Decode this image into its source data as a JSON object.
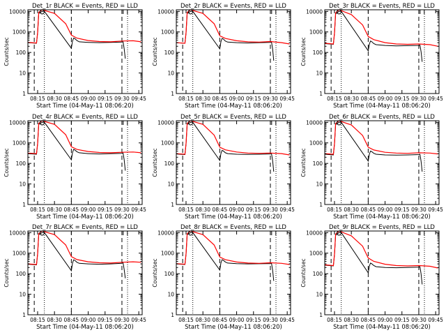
{
  "colors": {
    "events": "#000000",
    "lld": "#ff0000",
    "axis": "#000000",
    "background": "#ffffff"
  },
  "common": {
    "ylabel": "Counts/sec",
    "xlabel": "Start Time (04-May-11 08:06:20)",
    "yticks": [
      "1",
      "10",
      "100",
      "1000",
      "10000"
    ],
    "xticks": [
      "08:15",
      "08:30",
      "08:45",
      "09:00",
      "09:15",
      "09:30",
      "09:45"
    ]
  },
  "chart_data": [
    {
      "type": "line",
      "title": "Det_1r BLACK = Events, RED = LLD",
      "xlabel": "Start Time (04-May-11 08:06:20)",
      "ylabel": "Counts/sec",
      "y_scale": "log",
      "ylim": [
        1,
        12000
      ],
      "xlim": [
        "08:06:20",
        "09:48"
      ],
      "dashed_lines": [
        "08:12",
        "08:45",
        "09:30"
      ],
      "dotted_lines": [
        "08:21",
        "09:35"
      ],
      "series": [
        {
          "name": "Events",
          "x": [
            "08:06",
            "08:14",
            "08:15",
            "08:16",
            "08:19",
            "08:21",
            "08:45",
            "08:46",
            "08:47",
            "08:48",
            "08:50",
            "08:52",
            "09:00",
            "09:10",
            "09:20",
            "09:30",
            "09:31",
            "09:32",
            "09:33"
          ],
          "y": [
            300,
            280,
            900,
            8000,
            10000,
            10000,
            160,
            350,
            500,
            480,
            380,
            330,
            310,
            300,
            310,
            320,
            330,
            150,
            50
          ]
        },
        {
          "name": "LLD",
          "x": [
            "08:06",
            "08:14",
            "08:15",
            "08:16",
            "08:19",
            "08:30",
            "08:40",
            "08:45",
            "08:50",
            "09:00",
            "09:10",
            "09:20",
            "09:30",
            "09:40",
            "09:47"
          ],
          "y": [
            310,
            290,
            950,
            9000,
            12000,
            8000,
            2500,
            700,
            500,
            380,
            340,
            330,
            360,
            370,
            330
          ]
        }
      ]
    },
    {
      "type": "line",
      "title": "Det_2r BLACK = Events, RED = LLD",
      "xlabel": "Start Time (04-May-11 08:06:20)",
      "ylabel": "Counts/sec",
      "y_scale": "log",
      "ylim": [
        1,
        12000
      ],
      "xlim": [
        "08:06:20",
        "09:48"
      ],
      "dashed_lines": [
        "08:12",
        "08:45",
        "09:30"
      ],
      "dotted_lines": [
        "08:21",
        "09:35"
      ],
      "series": [
        {
          "name": "Events",
          "x": [
            "08:06",
            "08:14",
            "08:15",
            "08:16",
            "08:19",
            "08:21",
            "08:45",
            "08:46",
            "08:47",
            "08:48",
            "08:50",
            "08:52",
            "09:00",
            "09:10",
            "09:20",
            "09:30",
            "09:31",
            "09:32",
            "09:33"
          ],
          "y": [
            300,
            280,
            900,
            8000,
            10000,
            10000,
            150,
            330,
            480,
            460,
            360,
            320,
            300,
            290,
            300,
            310,
            320,
            150,
            40
          ]
        },
        {
          "name": "LLD",
          "x": [
            "08:06",
            "08:14",
            "08:15",
            "08:16",
            "08:19",
            "08:30",
            "08:40",
            "08:45",
            "08:50",
            "09:00",
            "09:10",
            "09:20",
            "09:30",
            "09:40",
            "09:47"
          ],
          "y": [
            300,
            280,
            950,
            9000,
            12000,
            8000,
            2500,
            650,
            480,
            370,
            330,
            320,
            340,
            300,
            260
          ]
        }
      ]
    },
    {
      "type": "line",
      "title": "Det_3r BLACK = Events, RED = LLD",
      "xlabel": "Start Time (04-May-11 08:06:20)",
      "ylabel": "Counts/sec",
      "y_scale": "log",
      "ylim": [
        1,
        12000
      ],
      "xlim": [
        "08:06:20",
        "09:48"
      ],
      "dashed_lines": [
        "08:12",
        "08:45",
        "09:30"
      ],
      "dotted_lines": [
        "08:21",
        "09:35"
      ],
      "series": [
        {
          "name": "Events",
          "x": [
            "08:06",
            "08:14",
            "08:15",
            "08:16",
            "08:19",
            "08:21",
            "08:45",
            "08:46",
            "08:47",
            "08:48",
            "08:50",
            "08:52",
            "09:00",
            "09:10",
            "09:20",
            "09:30",
            "09:31",
            "09:32",
            "09:33"
          ],
          "y": [
            270,
            250,
            850,
            7500,
            10000,
            10000,
            120,
            250,
            360,
            340,
            270,
            240,
            220,
            210,
            215,
            220,
            230,
            110,
            35
          ]
        },
        {
          "name": "LLD",
          "x": [
            "08:06",
            "08:14",
            "08:15",
            "08:16",
            "08:19",
            "08:30",
            "08:40",
            "08:45",
            "08:50",
            "09:00",
            "09:10",
            "09:20",
            "09:30",
            "09:40",
            "09:47"
          ],
          "y": [
            280,
            260,
            900,
            8500,
            12000,
            7000,
            2200,
            600,
            420,
            300,
            260,
            250,
            260,
            240,
            200
          ]
        }
      ]
    },
    {
      "type": "line",
      "title": "Det_4r BLACK = Events, RED = LLD",
      "xlabel": "Start Time (04-May-11 08:06:20)",
      "ylabel": "Counts/sec",
      "y_scale": "log",
      "ylim": [
        1,
        12000
      ],
      "xlim": [
        "08:06:20",
        "09:48"
      ],
      "dashed_lines": [
        "08:12",
        "08:45",
        "09:30"
      ],
      "dotted_lines": [
        "08:21",
        "09:35"
      ],
      "series": [
        {
          "name": "Events",
          "x": [
            "08:06",
            "08:14",
            "08:15",
            "08:16",
            "08:19",
            "08:21",
            "08:45",
            "08:46",
            "08:47",
            "08:48",
            "08:50",
            "08:52",
            "09:00",
            "09:10",
            "09:20",
            "09:30",
            "09:31",
            "09:32",
            "09:33"
          ],
          "y": [
            300,
            280,
            900,
            8000,
            10000,
            10000,
            150,
            330,
            480,
            460,
            370,
            330,
            300,
            290,
            300,
            310,
            320,
            150,
            45
          ]
        },
        {
          "name": "LLD",
          "x": [
            "08:06",
            "08:14",
            "08:15",
            "08:16",
            "08:19",
            "08:30",
            "08:40",
            "08:45",
            "08:50",
            "09:00",
            "09:10",
            "09:20",
            "09:30",
            "09:40",
            "09:47"
          ],
          "y": [
            320,
            300,
            950,
            9000,
            12000,
            8000,
            2500,
            650,
            480,
            380,
            340,
            330,
            350,
            360,
            330
          ]
        }
      ]
    },
    {
      "type": "line",
      "title": "Det_5r BLACK = Events, RED = LLD",
      "xlabel": "Start Time (04-May-11 08:06:20)",
      "ylabel": "Counts/sec",
      "y_scale": "log",
      "ylim": [
        1,
        12000
      ],
      "xlim": [
        "08:06:20",
        "09:48"
      ],
      "dashed_lines": [
        "08:12",
        "08:45",
        "09:30"
      ],
      "dotted_lines": [
        "08:21",
        "09:35"
      ],
      "series": [
        {
          "name": "Events",
          "x": [
            "08:06",
            "08:14",
            "08:15",
            "08:16",
            "08:19",
            "08:21",
            "08:45",
            "08:46",
            "08:47",
            "08:48",
            "08:50",
            "08:52",
            "09:00",
            "09:10",
            "09:20",
            "09:30",
            "09:31",
            "09:32",
            "09:33"
          ],
          "y": [
            290,
            270,
            900,
            8000,
            10000,
            10000,
            140,
            300,
            430,
            410,
            330,
            300,
            280,
            275,
            280,
            290,
            300,
            140,
            40
          ]
        },
        {
          "name": "LLD",
          "x": [
            "08:06",
            "08:14",
            "08:15",
            "08:16",
            "08:19",
            "08:30",
            "08:40",
            "08:45",
            "08:50",
            "09:00",
            "09:10",
            "09:20",
            "09:30",
            "09:40",
            "09:47"
          ],
          "y": [
            300,
            280,
            950,
            9000,
            12000,
            8000,
            2400,
            620,
            460,
            360,
            320,
            310,
            320,
            300,
            260
          ]
        }
      ]
    },
    {
      "type": "line",
      "title": "Det_6r BLACK = Events, RED = LLD",
      "xlabel": "Start Time (04-May-11 08:06:20)",
      "ylabel": "Counts/sec",
      "y_scale": "log",
      "ylim": [
        1,
        12000
      ],
      "xlim": [
        "08:06:20",
        "09:48"
      ],
      "dashed_lines": [
        "08:12",
        "08:45",
        "09:30"
      ],
      "dotted_lines": [
        "08:21",
        "09:35"
      ],
      "series": [
        {
          "name": "Events",
          "x": [
            "08:06",
            "08:14",
            "08:15",
            "08:16",
            "08:19",
            "08:21",
            "08:45",
            "08:46",
            "08:47",
            "08:48",
            "08:50",
            "08:52",
            "09:00",
            "09:10",
            "09:20",
            "09:30",
            "09:31",
            "09:32",
            "09:33"
          ],
          "y": [
            280,
            260,
            880,
            7800,
            10000,
            10000,
            130,
            280,
            400,
            380,
            310,
            280,
            260,
            255,
            260,
            270,
            280,
            130,
            40
          ]
        },
        {
          "name": "LLD",
          "x": [
            "08:06",
            "08:14",
            "08:15",
            "08:16",
            "08:19",
            "08:30",
            "08:40",
            "08:45",
            "08:50",
            "09:00",
            "09:10",
            "09:20",
            "09:30",
            "09:40",
            "09:47"
          ],
          "y": [
            300,
            280,
            930,
            8800,
            12000,
            7500,
            2300,
            620,
            450,
            350,
            320,
            310,
            330,
            320,
            290
          ]
        }
      ]
    },
    {
      "type": "line",
      "title": "Det_7r BLACK = Events, RED = LLD",
      "xlabel": "Start Time (04-May-11 08:06:20)",
      "ylabel": "Counts/sec",
      "y_scale": "log",
      "ylim": [
        1,
        12000
      ],
      "xlim": [
        "08:06:20",
        "09:48"
      ],
      "dashed_lines": [
        "08:12",
        "08:45",
        "09:30"
      ],
      "dotted_lines": [
        "08:21",
        "09:35"
      ],
      "series": [
        {
          "name": "Events",
          "x": [
            "08:06",
            "08:14",
            "08:15",
            "08:16",
            "08:19",
            "08:21",
            "08:45",
            "08:46",
            "08:47",
            "08:48",
            "08:50",
            "08:52",
            "09:00",
            "09:10",
            "09:20",
            "09:30",
            "09:31",
            "09:32",
            "09:33"
          ],
          "y": [
            290,
            270,
            900,
            8000,
            10000,
            10000,
            140,
            320,
            470,
            450,
            360,
            320,
            300,
            290,
            300,
            320,
            340,
            160,
            60
          ]
        },
        {
          "name": "LLD",
          "x": [
            "08:06",
            "08:14",
            "08:15",
            "08:16",
            "08:19",
            "08:30",
            "08:40",
            "08:45",
            "08:50",
            "09:00",
            "09:10",
            "09:20",
            "09:30",
            "09:40",
            "09:47"
          ],
          "y": [
            300,
            280,
            950,
            9000,
            12000,
            8000,
            2500,
            680,
            490,
            380,
            340,
            330,
            360,
            380,
            360
          ]
        }
      ]
    },
    {
      "type": "line",
      "title": "Det_8r BLACK = Events, RED = LLD",
      "xlabel": "Start Time (04-May-11 08:06:20)",
      "ylabel": "Counts/sec",
      "y_scale": "log",
      "ylim": [
        1,
        12000
      ],
      "xlim": [
        "08:06:20",
        "09:48"
      ],
      "dashed_lines": [
        "08:12",
        "08:45",
        "09:30"
      ],
      "dotted_lines": [
        "08:21",
        "09:35"
      ],
      "series": [
        {
          "name": "Events",
          "x": [
            "08:06",
            "08:14",
            "08:15",
            "08:16",
            "08:19",
            "08:21",
            "08:45",
            "08:46",
            "08:47",
            "08:48",
            "08:50",
            "08:52",
            "09:00",
            "09:10",
            "09:20",
            "09:30",
            "09:31",
            "09:32",
            "09:33"
          ],
          "y": [
            300,
            280,
            900,
            8000,
            10000,
            10000,
            150,
            330,
            480,
            460,
            370,
            330,
            310,
            300,
            305,
            310,
            320,
            150,
            45
          ]
        },
        {
          "name": "LLD",
          "x": [
            "08:06",
            "08:14",
            "08:15",
            "08:16",
            "08:19",
            "08:30",
            "08:40",
            "08:45",
            "08:50",
            "09:00",
            "09:10",
            "09:20",
            "09:30",
            "09:40",
            "09:47"
          ],
          "y": [
            310,
            290,
            950,
            9000,
            12000,
            8000,
            2500,
            650,
            480,
            370,
            330,
            320,
            340,
            320,
            280
          ]
        }
      ]
    },
    {
      "type": "line",
      "title": "Det_9r BLACK = Events, RED = LLD",
      "xlabel": "Start Time (04-May-11 08:06:20)",
      "ylabel": "Counts/sec",
      "y_scale": "log",
      "ylim": [
        1,
        12000
      ],
      "xlim": [
        "08:06:20",
        "09:48"
      ],
      "dashed_lines": [
        "08:12",
        "08:45",
        "09:30"
      ],
      "dotted_lines": [
        "08:21",
        "09:35"
      ],
      "series": [
        {
          "name": "Events",
          "x": [
            "08:06",
            "08:14",
            "08:15",
            "08:16",
            "08:19",
            "08:21",
            "08:45",
            "08:46",
            "08:47",
            "08:48",
            "08:50",
            "08:52",
            "09:00",
            "09:10",
            "09:20",
            "09:30",
            "09:31",
            "09:32",
            "09:33"
          ],
          "y": [
            260,
            240,
            850,
            7500,
            10000,
            10000,
            110,
            230,
            330,
            310,
            250,
            220,
            200,
            195,
            200,
            210,
            220,
            100,
            30
          ]
        },
        {
          "name": "LLD",
          "x": [
            "08:06",
            "08:14",
            "08:15",
            "08:16",
            "08:19",
            "08:30",
            "08:40",
            "08:45",
            "08:50",
            "09:00",
            "09:10",
            "09:20",
            "09:30",
            "09:40",
            "09:47"
          ],
          "y": [
            270,
            250,
            900,
            8500,
            12000,
            7000,
            2200,
            580,
            400,
            290,
            250,
            240,
            250,
            230,
            190
          ]
        }
      ]
    }
  ]
}
